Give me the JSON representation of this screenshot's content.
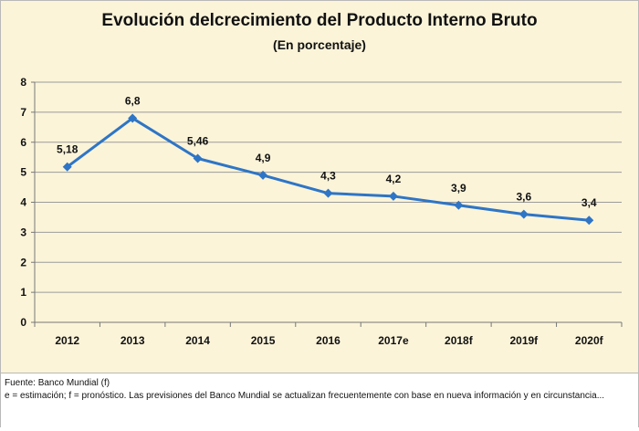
{
  "chart_data": {
    "type": "line",
    "title": "Evolución delcrecimiento del Producto Interno Bruto",
    "subtitle": "(En porcentaje)",
    "categories": [
      "2012",
      "2013",
      "2014",
      "2015",
      "2016",
      "2017e",
      "2018f",
      "2019f",
      "2020f"
    ],
    "series": [
      {
        "values": [
          5.18,
          6.8,
          5.46,
          4.9,
          4.3,
          4.2,
          3.9,
          3.6,
          3.4
        ],
        "data_labels": [
          "5,18",
          "6,8",
          "5,46",
          "4,9",
          "4,3",
          "4,2",
          "3,9",
          "3,6",
          "3,4"
        ],
        "color": "#2e75c6",
        "marker": "diamond"
      }
    ],
    "ylim": [
      0,
      8
    ],
    "yticks": [
      "0",
      "1",
      "2",
      "3",
      "4",
      "5",
      "6",
      "7",
      "8"
    ],
    "grid": true,
    "legend": "none",
    "background_color": "#fbf4d9"
  },
  "footer": {
    "source": "Fuente: Banco Mundial (f)",
    "note": "e = estimación; f = pronóstico. Las previsiones del Banco Mundial se actualizan frecuentemente con base en nueva información y en circunstancia..."
  }
}
